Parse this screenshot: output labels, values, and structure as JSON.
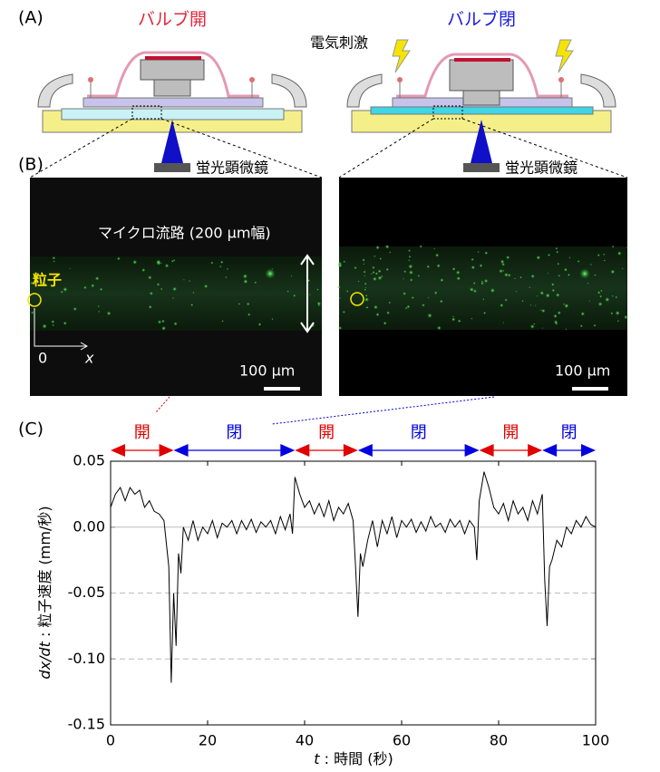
{
  "panels": {
    "A": {
      "label": "(A)",
      "open_title": "バルブ開",
      "closed_title": "バルブ閉",
      "stimulus": "電気刺激"
    },
    "B": {
      "label": "(B)",
      "microscope": [
        "蛍光顕微鏡",
        "蛍光顕微鏡"
      ],
      "channel": "マイクロ流路 (200 μm幅)",
      "particle": "粒子",
      "origin": "0",
      "x_axis": "x",
      "scale_bar": [
        "100 μm",
        "100 μm"
      ]
    }
  },
  "chart_data": {
    "type": "line",
    "panel_label": "(C)",
    "xlabel": [
      "t",
      " : 時間 (秒)"
    ],
    "ylabel": [
      "dx/dt",
      " : 粒子速度 (mm/秒)"
    ],
    "color": "#000000",
    "xlim": [
      0,
      100
    ],
    "xticks": [
      0,
      20,
      40,
      60,
      80,
      100
    ],
    "ylim": [
      -0.15,
      0.05
    ],
    "yticks": [
      {
        "value": -0.15,
        "label": "-0.15"
      },
      {
        "value": -0.1,
        "label": "-0.10"
      },
      {
        "value": -0.05,
        "label": "-0.05"
      },
      {
        "value": 0,
        "label": "0.00"
      },
      {
        "value": 0.05,
        "label": "0.05"
      }
    ],
    "grid": true,
    "phases": [
      {
        "label": "開",
        "start": 0,
        "end": 13,
        "color": "#e00000"
      },
      {
        "label": "閉",
        "start": 13,
        "end": 38,
        "color": "#0000e0"
      },
      {
        "label": "開",
        "start": 38,
        "end": 51,
        "color": "#e00000"
      },
      {
        "label": "閉",
        "start": 51,
        "end": 76,
        "color": "#0000e0"
      },
      {
        "label": "開",
        "start": 76,
        "end": 89,
        "color": "#e00000"
      },
      {
        "label": "閉",
        "start": 89,
        "end": 100,
        "color": "#0000e0"
      }
    ],
    "x": [
      0,
      1,
      2,
      3,
      4,
      5,
      6,
      7,
      8,
      9,
      10,
      11,
      12,
      12.5,
      13,
      13.5,
      14,
      14.5,
      15,
      16,
      17,
      18,
      19,
      20,
      21,
      22,
      23,
      24,
      25,
      26,
      27,
      28,
      29,
      30,
      31,
      32,
      33,
      34,
      35,
      36,
      37,
      37.5,
      38,
      39,
      40,
      41,
      42,
      43,
      44,
      45,
      46,
      47,
      48,
      49,
      50,
      50.5,
      51,
      51.5,
      52,
      53,
      54,
      55,
      56,
      57,
      58,
      59,
      60,
      61,
      62,
      63,
      64,
      65,
      66,
      67,
      68,
      69,
      70,
      71,
      72,
      73,
      74,
      75,
      75.5,
      76,
      77,
      78,
      79,
      80,
      81,
      82,
      83,
      84,
      85,
      86,
      87,
      88,
      89,
      89.5,
      90,
      90.5,
      91,
      92,
      93,
      94,
      95,
      96,
      97,
      98,
      99,
      100
    ],
    "values": [
      0.015,
      0.025,
      0.03,
      0.02,
      0.03,
      0.025,
      0.028,
      0.015,
      0.02,
      0.012,
      0.01,
      0.005,
      -0.03,
      -0.118,
      -0.05,
      -0.09,
      -0.02,
      -0.035,
      0,
      -0.01,
      0.005,
      -0.01,
      0,
      -0.005,
      0.005,
      -0.008,
      0.003,
      0,
      0.005,
      -0.005,
      0.005,
      -0.002,
      0.006,
      -0.004,
      0.004,
      0,
      0.005,
      -0.005,
      0.008,
      -0.002,
      0.01,
      -0.005,
      0.038,
      0.025,
      0.015,
      0.02,
      0.01,
      0.018,
      0.008,
      0.02,
      0.005,
      0.015,
      0.01,
      0.018,
      0.005,
      -0.03,
      -0.068,
      -0.02,
      -0.03,
      -0.01,
      0.005,
      -0.015,
      0.005,
      -0.005,
      0.008,
      -0.008,
      0.005,
      0,
      0.006,
      -0.004,
      0.004,
      -0.003,
      0.008,
      0,
      0.003,
      -0.004,
      0.006,
      0,
      0.005,
      -0.005,
      0.005,
      0,
      -0.025,
      0.02,
      0.042,
      0.03,
      0.015,
      0.01,
      0.018,
      0.005,
      0.02,
      0.01,
      0.015,
      0.005,
      0.02,
      0.01,
      0.025,
      -0.04,
      -0.075,
      -0.03,
      -0.025,
      -0.01,
      -0.015,
      0,
      -0.005,
      0.005,
      0,
      0.008,
      0.002,
      0
    ]
  }
}
